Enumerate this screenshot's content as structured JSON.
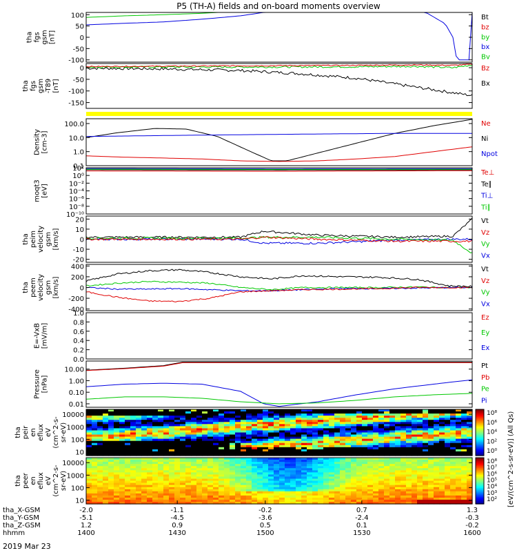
{
  "title": "P5 (TH-A) fields and on-board moments overview",
  "date_label": "2019 Mar 23",
  "colors": {
    "black": "#000000",
    "red": "#e00000",
    "green": "#00c800",
    "blue": "#0000e0",
    "yellow": "#ffff00"
  },
  "chart_data": [
    {
      "type": "line",
      "id": "fgs",
      "ylabel": [
        "tha",
        "fgs",
        "gsm",
        "[nT]"
      ],
      "yticks": [
        "100",
        "50",
        "0",
        "-50",
        "-100"
      ],
      "ylim": [
        -110,
        110
      ],
      "legend": [
        {
          "label": "Bt",
          "color": "black"
        },
        {
          "label": "bz",
          "color": "red"
        },
        {
          "label": "by",
          "color": "green"
        },
        {
          "label": "bx",
          "color": "blue"
        },
        {
          "label": "Bv",
          "color": "green"
        }
      ],
      "series": [
        {
          "color": "blue",
          "x": [
            0,
            0.1,
            0.2,
            0.3,
            0.4,
            0.46,
            0.8,
            0.88,
            0.93,
            0.95,
            0.96,
            0.995,
            1.0
          ],
          "y": [
            55,
            62,
            68,
            80,
            95,
            110,
            110,
            110,
            60,
            0,
            -100,
            -100,
            110
          ]
        },
        {
          "color": "green",
          "x": [
            0,
            0.1,
            0.2,
            0.3,
            0.34,
            0.99,
            1.0
          ],
          "y": [
            88,
            95,
            100,
            106,
            110,
            110,
            110
          ]
        }
      ]
    },
    {
      "type": "line",
      "id": "fgs-detrend",
      "ylabel": [
        "tha",
        "fgs",
        "gsm",
        "-T89",
        "[nT]"
      ],
      "yticks": [
        "0",
        "-50",
        "-100",
        "-150"
      ],
      "ylim": [
        -175,
        18
      ],
      "legend": [
        {
          "label": "Bz",
          "color": "red"
        },
        {
          "label": "Bx",
          "color": "black"
        }
      ],
      "series": [
        {
          "color": "black",
          "noise": 6,
          "x": [
            0,
            0.2,
            0.4,
            0.55,
            0.7,
            0.82,
            0.92,
            1.0
          ],
          "y": [
            -2,
            -5,
            -12,
            -25,
            -45,
            -75,
            -100,
            -120
          ]
        },
        {
          "color": "green",
          "noise": 4,
          "x": [
            0,
            0.4,
            0.7,
            0.85,
            0.95,
            1.0
          ],
          "y": [
            3,
            3,
            4,
            6,
            0,
            12
          ]
        },
        {
          "color": "red",
          "noise": 2,
          "x": [
            0,
            0.4,
            0.7,
            0.85,
            0.95,
            1.0
          ],
          "y": [
            5,
            8,
            10,
            12,
            10,
            15
          ]
        }
      ]
    },
    {
      "type": "line",
      "id": "density",
      "ylabel": [
        "Density",
        "[cm-3]"
      ],
      "yscale": "log",
      "yticks": [
        "100.0",
        "10.0",
        "1.0",
        "0.1"
      ],
      "ylim": [
        0.1,
        220
      ],
      "legend": [
        {
          "label": "Ne",
          "color": "red"
        },
        {
          "label": "Ni",
          "color": "black"
        },
        {
          "label": "Npot",
          "color": "blue"
        }
      ],
      "series": [
        {
          "color": "black",
          "x": [
            0,
            0.08,
            0.18,
            0.26,
            0.34,
            0.42,
            0.48,
            0.52,
            0.6,
            0.7,
            0.8,
            0.9,
            1.0
          ],
          "y": [
            10,
            22,
            45,
            40,
            12,
            1.2,
            0.22,
            0.22,
            0.8,
            4,
            20,
            70,
            200
          ]
        },
        {
          "color": "blue",
          "x": [
            0,
            0.2,
            0.4,
            0.6,
            0.8
          ],
          "y": [
            12,
            14,
            16,
            18,
            20
          ]
        },
        {
          "color": "red",
          "x": [
            0,
            0.1,
            0.2,
            0.3,
            0.4,
            0.5,
            0.6,
            0.7,
            0.8,
            0.9,
            1.0
          ],
          "y": [
            0.5,
            0.4,
            0.35,
            0.3,
            0.22,
            0.2,
            0.22,
            0.3,
            0.45,
            1.0,
            2.2
          ]
        }
      ]
    },
    {
      "type": "line",
      "id": "temperature",
      "ylabel": [
        "moqt3",
        "[eV]"
      ],
      "yscale": "log",
      "yticks": [
        "10²",
        "10⁰",
        "10⁻²",
        "10⁻⁴",
        "10⁻⁶",
        "10⁻⁸",
        "10⁻¹⁰"
      ],
      "ylim": [
        1e-10,
        100
      ],
      "legend": [
        {
          "label": "Te⊥",
          "color": "red"
        },
        {
          "label": "Te∥",
          "color": "black"
        },
        {
          "label": "Ti⊥",
          "color": "blue"
        },
        {
          "label": "Ti∥",
          "color": "green"
        }
      ],
      "series": [
        {
          "color": "black",
          "x": [
            0,
            0.5,
            1.0
          ],
          "y": [
            30,
            25,
            28
          ]
        },
        {
          "color": "blue",
          "x": [
            0,
            0.5,
            1.0
          ],
          "y": [
            60,
            50,
            55
          ]
        },
        {
          "color": "green",
          "x": [
            0,
            0.5,
            1.0
          ],
          "y": [
            40,
            35,
            38
          ]
        },
        {
          "color": "red",
          "x": [
            0,
            0.5,
            1.0
          ],
          "y": [
            15,
            12,
            18
          ]
        }
      ]
    },
    {
      "type": "line",
      "id": "peim",
      "ylabel": [
        "tha",
        "peim",
        "velocity",
        "gsm",
        "[km/s]"
      ],
      "yticks": [
        "20",
        "10",
        "0",
        "-10",
        "-20"
      ],
      "ylim": [
        -23,
        23
      ],
      "legend": [
        {
          "label": "Vt",
          "color": "black"
        },
        {
          "label": "Vz",
          "color": "red"
        },
        {
          "label": "Vy",
          "color": "green"
        },
        {
          "label": "Vx",
          "color": "blue"
        }
      ],
      "series": [
        {
          "color": "black",
          "noise": 1,
          "x": [
            0,
            0.4,
            0.46,
            0.6,
            0.8,
            0.95,
            1.0
          ],
          "y": [
            2,
            2,
            8,
            4,
            2,
            3,
            20
          ]
        },
        {
          "color": "blue",
          "noise": 1,
          "x": [
            0,
            0.4,
            0.46,
            0.6,
            0.8,
            0.95,
            1.0
          ],
          "y": [
            0,
            0,
            -4,
            -4,
            -1,
            0,
            0
          ]
        },
        {
          "color": "green",
          "noise": 1,
          "x": [
            0,
            0.4,
            0.46,
            0.6,
            0.8,
            0.95,
            1.0
          ],
          "y": [
            1,
            1,
            2,
            2,
            0,
            -1,
            -14
          ]
        },
        {
          "color": "red",
          "noise": 1,
          "x": [
            0,
            0.4,
            0.46,
            0.6,
            0.8,
            0.95,
            1.0
          ],
          "y": [
            0,
            0,
            2,
            0,
            -2,
            -2,
            -2
          ]
        }
      ]
    },
    {
      "type": "line",
      "id": "peem",
      "ylabel": [
        "tha",
        "peem",
        "velocity",
        "gsm",
        "[km/s]"
      ],
      "yticks": [
        "400",
        "200",
        "0",
        "-200",
        "-400"
      ],
      "ylim": [
        -430,
        430
      ],
      "legend": [
        {
          "label": "Vt",
          "color": "black"
        },
        {
          "label": "Vz",
          "color": "red"
        },
        {
          "label": "Vy",
          "color": "green"
        },
        {
          "label": "Vx",
          "color": "blue"
        }
      ],
      "series": [
        {
          "color": "black",
          "noise": 15,
          "x": [
            0,
            0.08,
            0.16,
            0.24,
            0.32,
            0.4,
            0.48,
            0.56,
            0.66,
            0.76,
            0.86,
            0.94,
            1.0
          ],
          "y": [
            120,
            250,
            310,
            330,
            280,
            200,
            160,
            220,
            200,
            190,
            150,
            30,
            20
          ]
        },
        {
          "color": "green",
          "noise": 12,
          "x": [
            0,
            0.08,
            0.16,
            0.24,
            0.32,
            0.4,
            0.48,
            0.56,
            0.66,
            0.76,
            0.86,
            0.94,
            1.0
          ],
          "y": [
            30,
            80,
            110,
            100,
            80,
            0,
            -40,
            0,
            0,
            0,
            10,
            0,
            0
          ]
        },
        {
          "color": "blue",
          "noise": 12,
          "x": [
            0,
            0.08,
            0.16,
            0.24,
            0.32,
            0.4,
            0.48,
            0.56,
            0.66,
            0.76,
            0.86,
            0.94,
            1.0
          ],
          "y": [
            0,
            -30,
            -30,
            -20,
            -40,
            -60,
            -60,
            -40,
            -20,
            -20,
            -10,
            0,
            0
          ]
        },
        {
          "color": "red",
          "noise": 12,
          "x": [
            0,
            0.08,
            0.16,
            0.24,
            0.32,
            0.4,
            0.48,
            0.56,
            0.66,
            0.76,
            0.86,
            0.94,
            1.0
          ],
          "y": [
            -80,
            -180,
            -250,
            -260,
            -200,
            -80,
            -60,
            -40,
            -30,
            -20,
            0,
            0,
            0
          ]
        }
      ]
    },
    {
      "type": "line",
      "id": "efield",
      "ylabel": [
        "E=-VxB",
        "[mV/m]"
      ],
      "yticks": [
        "1.0",
        "0.8",
        "0.6",
        "0.4",
        "0.2",
        "0.0"
      ],
      "ylim": [
        0,
        1
      ],
      "legend": [
        {
          "label": "Ez",
          "color": "red"
        },
        {
          "label": "Ey",
          "color": "green"
        },
        {
          "label": "Ex",
          "color": "blue"
        }
      ],
      "series": []
    },
    {
      "type": "line",
      "id": "pressure",
      "ylabel": [
        "Pressure",
        "[nPa]"
      ],
      "yscale": "log",
      "yticks": [
        "10.00",
        "1.00",
        "0.10",
        "0.01"
      ],
      "ylim": [
        0.005,
        50
      ],
      "legend": [
        {
          "label": "Pt",
          "color": "black"
        },
        {
          "label": "Pb",
          "color": "red"
        },
        {
          "label": "Pe",
          "color": "green"
        },
        {
          "label": "Pi",
          "color": "blue"
        }
      ],
      "series": [
        {
          "color": "black",
          "x": [
            0,
            0.1,
            0.2,
            0.25
          ],
          "y": [
            8,
            12,
            20,
            40
          ]
        },
        {
          "color": "red",
          "x": [
            0,
            0.1,
            0.2,
            0.25
          ],
          "y": [
            7.5,
            11,
            18,
            36
          ]
        },
        {
          "color": "blue",
          "x": [
            0,
            0.1,
            0.2,
            0.3,
            0.4,
            0.46,
            0.5,
            0.6,
            0.7,
            0.8,
            0.9,
            1.0
          ],
          "y": [
            0.3,
            0.5,
            0.6,
            0.5,
            0.12,
            0.01,
            0.006,
            0.015,
            0.06,
            0.2,
            0.5,
            1.2
          ]
        },
        {
          "color": "green",
          "x": [
            0,
            0.1,
            0.2,
            0.3,
            0.4,
            0.5,
            0.6,
            0.7,
            0.8,
            0.9,
            1.0
          ],
          "y": [
            0.025,
            0.04,
            0.04,
            0.03,
            0.015,
            0.01,
            0.012,
            0.02,
            0.04,
            0.06,
            0.08
          ]
        }
      ]
    },
    {
      "type": "heatmap",
      "id": "peir-eflux",
      "ylabel": [
        "tha",
        "peir",
        "en",
        "eflux",
        "eV",
        "(cm^2-s-",
        "sr-eV)"
      ],
      "yscale": "log",
      "yticks": [
        "10000",
        "1000",
        "100",
        "10"
      ],
      "ylim": [
        5,
        25000
      ],
      "colorbar_ticks": [
        "10⁸",
        "10⁶",
        "10⁴",
        "10²",
        "10⁰"
      ]
    },
    {
      "type": "heatmap",
      "id": "peer-eflux",
      "ylabel": [
        "tha",
        "peer",
        "en",
        "eflux",
        "eV",
        "(cm^2-s-",
        "sr-eV)"
      ],
      "yscale": "log",
      "yticks": [
        "10000",
        "1000",
        "100",
        "10"
      ],
      "ylim": [
        5,
        25000
      ],
      "colorbar_ticks": [
        "10⁸",
        "10⁷",
        "10⁶",
        "10⁵",
        "10⁴",
        "10³",
        "10²"
      ]
    }
  ],
  "colorbar_label": "[eV/(cm^2-s-sr-eV)] (All Qs)",
  "xaxis": {
    "rows": [
      {
        "label": "tha_X-GSM",
        "values": [
          "-2.0",
          "-1.1",
          "-0.2",
          "0.7",
          "1.3"
        ]
      },
      {
        "label": "tha_Y-GSM",
        "values": [
          "-5.1",
          "-4.5",
          "-3.6",
          "-2.4",
          "-0.3"
        ]
      },
      {
        "label": "tha_Z-GSM",
        "values": [
          "1.2",
          "0.9",
          "0.5",
          "0.1",
          "-0.2"
        ]
      },
      {
        "label": "hhmm",
        "values": [
          "1400",
          "1430",
          "1500",
          "1530",
          "1600"
        ]
      }
    ]
  }
}
